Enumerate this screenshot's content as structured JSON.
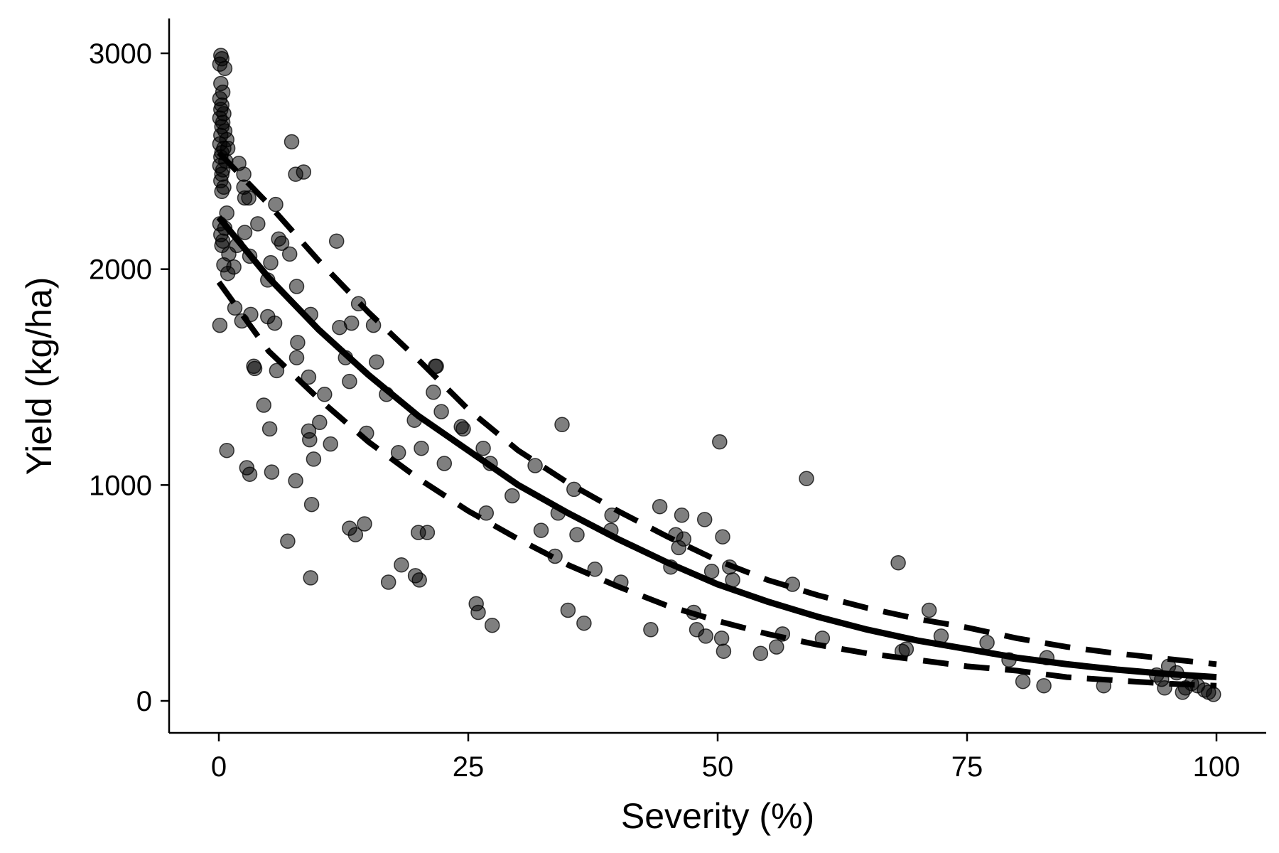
{
  "chart_data": {
    "type": "scatter",
    "xlabel": "Severity (%)",
    "ylabel": "Yield (kg/ha)",
    "xlim": [
      -5,
      105
    ],
    "ylim": [
      -150,
      3150
    ],
    "x_ticks": [
      0,
      25,
      50,
      75,
      100
    ],
    "y_ticks": [
      0,
      1000,
      2000,
      3000
    ],
    "grid": false,
    "legend": "none",
    "colors": {
      "points": "#000000",
      "fit": "#000000"
    },
    "series": [
      {
        "type": "scatter",
        "points": [
          [
            0.2,
            2990
          ],
          [
            0.3,
            2975
          ],
          [
            0.1,
            2950
          ],
          [
            0.6,
            2930
          ],
          [
            0.2,
            2860
          ],
          [
            0.4,
            2820
          ],
          [
            0.1,
            2790
          ],
          [
            0.3,
            2760
          ],
          [
            0.2,
            2740
          ],
          [
            0.5,
            2720
          ],
          [
            0.1,
            2700
          ],
          [
            0.4,
            2680
          ],
          [
            0.3,
            2660
          ],
          [
            0.6,
            2640
          ],
          [
            0.2,
            2620
          ],
          [
            0.8,
            2600
          ],
          [
            0.1,
            2580
          ],
          [
            0.5,
            2560
          ],
          [
            0.9,
            2560
          ],
          [
            0.3,
            2540
          ],
          [
            0.2,
            2520
          ],
          [
            0.7,
            2500
          ],
          [
            0.1,
            2480
          ],
          [
            0.4,
            2460
          ],
          [
            0.3,
            2440
          ],
          [
            0.2,
            2410
          ],
          [
            0.5,
            2380
          ],
          [
            0.3,
            2360
          ],
          [
            0.8,
            2260
          ],
          [
            0.1,
            2210
          ],
          [
            0.6,
            2190
          ],
          [
            0.2,
            2160
          ],
          [
            0.4,
            2130
          ],
          [
            0.3,
            2110
          ],
          [
            1.0,
            2070
          ],
          [
            0.5,
            2020
          ],
          [
            1.5,
            2010
          ],
          [
            0.9,
            1980
          ],
          [
            1.6,
            1820
          ],
          [
            0.1,
            1740
          ],
          [
            0.8,
            1160
          ],
          [
            1.8,
            2110
          ],
          [
            2.0,
            2490
          ],
          [
            2.5,
            2440
          ],
          [
            2.5,
            2380
          ],
          [
            2.6,
            2330
          ],
          [
            3.0,
            2330
          ],
          [
            2.6,
            2170
          ],
          [
            3.1,
            2060
          ],
          [
            2.3,
            1760
          ],
          [
            3.2,
            1790
          ],
          [
            3.5,
            1550
          ],
          [
            3.6,
            1540
          ],
          [
            2.8,
            1080
          ],
          [
            3.1,
            1050
          ],
          [
            3.9,
            2210
          ],
          [
            4.5,
            1370
          ],
          [
            4.9,
            1950
          ],
          [
            4.9,
            1780
          ],
          [
            5.1,
            1260
          ],
          [
            5.2,
            2030
          ],
          [
            5.6,
            1750
          ],
          [
            5.7,
            2300
          ],
          [
            5.8,
            1530
          ],
          [
            6.0,
            2140
          ],
          [
            6.3,
            2120
          ],
          [
            5.3,
            1060
          ],
          [
            6.9,
            740
          ],
          [
            7.1,
            2070
          ],
          [
            7.3,
            2590
          ],
          [
            7.7,
            2440
          ],
          [
            7.8,
            1920
          ],
          [
            7.9,
            1660
          ],
          [
            7.8,
            1590
          ],
          [
            7.7,
            1020
          ],
          [
            8.5,
            2450
          ],
          [
            9.0,
            1500
          ],
          [
            9.0,
            1250
          ],
          [
            9.1,
            1210
          ],
          [
            9.2,
            1790
          ],
          [
            9.3,
            910
          ],
          [
            9.2,
            570
          ],
          [
            9.5,
            1120
          ],
          [
            10.1,
            1290
          ],
          [
            10.6,
            1420
          ],
          [
            11.2,
            1190
          ],
          [
            11.8,
            2130
          ],
          [
            12.1,
            1730
          ],
          [
            12.7,
            1590
          ],
          [
            13.1,
            1480
          ],
          [
            13.3,
            1750
          ],
          [
            13.1,
            800
          ],
          [
            13.7,
            770
          ],
          [
            14.0,
            1840
          ],
          [
            14.6,
            820
          ],
          [
            14.8,
            1240
          ],
          [
            15.5,
            1740
          ],
          [
            15.8,
            1570
          ],
          [
            16.8,
            1420
          ],
          [
            17.0,
            550
          ],
          [
            18.0,
            1150
          ],
          [
            18.3,
            630
          ],
          [
            19.6,
            1300
          ],
          [
            19.7,
            580
          ],
          [
            20.0,
            780
          ],
          [
            20.1,
            560
          ],
          [
            20.3,
            1170
          ],
          [
            20.9,
            780
          ],
          [
            21.5,
            1430
          ],
          [
            21.7,
            1550
          ],
          [
            21.8,
            1550
          ],
          [
            22.3,
            1340
          ],
          [
            22.6,
            1100
          ],
          [
            24.3,
            1270
          ],
          [
            24.5,
            1260
          ],
          [
            25.8,
            450
          ],
          [
            26.0,
            410
          ],
          [
            26.5,
            1170
          ],
          [
            26.8,
            870
          ],
          [
            27.2,
            1100
          ],
          [
            27.4,
            350
          ],
          [
            29.4,
            950
          ],
          [
            31.7,
            1090
          ],
          [
            32.3,
            790
          ],
          [
            33.7,
            670
          ],
          [
            34.0,
            870
          ],
          [
            34.4,
            1280
          ],
          [
            35.0,
            420
          ],
          [
            35.6,
            980
          ],
          [
            35.9,
            770
          ],
          [
            36.6,
            360
          ],
          [
            37.7,
            610
          ],
          [
            39.3,
            790
          ],
          [
            39.4,
            860
          ],
          [
            40.3,
            550
          ],
          [
            43.3,
            330
          ],
          [
            44.2,
            900
          ],
          [
            45.3,
            620
          ],
          [
            45.8,
            770
          ],
          [
            46.1,
            710
          ],
          [
            46.4,
            860
          ],
          [
            46.6,
            750
          ],
          [
            47.6,
            410
          ],
          [
            47.9,
            330
          ],
          [
            48.7,
            840
          ],
          [
            48.8,
            300
          ],
          [
            49.4,
            600
          ],
          [
            50.2,
            1200
          ],
          [
            50.4,
            290
          ],
          [
            50.5,
            760
          ],
          [
            50.6,
            230
          ],
          [
            51.2,
            620
          ],
          [
            51.5,
            560
          ],
          [
            54.3,
            220
          ],
          [
            55.9,
            250
          ],
          [
            56.5,
            310
          ],
          [
            57.5,
            540
          ],
          [
            58.9,
            1030
          ],
          [
            60.5,
            290
          ],
          [
            68.1,
            640
          ],
          [
            68.5,
            230
          ],
          [
            68.9,
            240
          ],
          [
            71.2,
            420
          ],
          [
            72.4,
            300
          ],
          [
            77.0,
            270
          ],
          [
            79.2,
            190
          ],
          [
            80.6,
            90
          ],
          [
            82.7,
            70
          ],
          [
            83.0,
            200
          ],
          [
            88.7,
            70
          ],
          [
            94.0,
            120
          ],
          [
            94.5,
            100
          ],
          [
            94.8,
            60
          ],
          [
            95.2,
            160
          ],
          [
            96.0,
            130
          ],
          [
            96.6,
            40
          ],
          [
            96.9,
            60
          ],
          [
            97.5,
            80
          ],
          [
            98.1,
            70
          ],
          [
            98.8,
            50
          ],
          [
            99.2,
            40
          ],
          [
            99.7,
            30
          ]
        ]
      },
      {
        "type": "line",
        "style": "solid",
        "points": [
          [
            0,
            2240
          ],
          [
            5,
            1960
          ],
          [
            10,
            1720
          ],
          [
            15,
            1510
          ],
          [
            20,
            1320
          ],
          [
            25,
            1160
          ],
          [
            30,
            1000
          ],
          [
            35,
            870
          ],
          [
            40,
            750
          ],
          [
            45,
            640
          ],
          [
            50,
            540
          ],
          [
            55,
            460
          ],
          [
            60,
            390
          ],
          [
            65,
            330
          ],
          [
            70,
            280
          ],
          [
            75,
            240
          ],
          [
            80,
            200
          ],
          [
            85,
            170
          ],
          [
            90,
            145
          ],
          [
            95,
            125
          ],
          [
            100,
            110
          ]
        ]
      },
      {
        "type": "line",
        "style": "dashed",
        "points": [
          [
            0,
            2540
          ],
          [
            5,
            2300
          ],
          [
            10,
            2040
          ],
          [
            15,
            1800
          ],
          [
            20,
            1580
          ],
          [
            25,
            1350
          ],
          [
            30,
            1160
          ],
          [
            35,
            1010
          ],
          [
            40,
            880
          ],
          [
            45,
            760
          ],
          [
            50,
            650
          ],
          [
            55,
            560
          ],
          [
            60,
            490
          ],
          [
            65,
            430
          ],
          [
            70,
            380
          ],
          [
            75,
            340
          ],
          [
            80,
            290
          ],
          [
            85,
            250
          ],
          [
            90,
            220
          ],
          [
            95,
            195
          ],
          [
            100,
            170
          ]
        ]
      },
      {
        "type": "line",
        "style": "dashed",
        "points": [
          [
            0,
            1940
          ],
          [
            5,
            1620
          ],
          [
            10,
            1400
          ],
          [
            15,
            1200
          ],
          [
            20,
            1030
          ],
          [
            25,
            880
          ],
          [
            30,
            750
          ],
          [
            35,
            630
          ],
          [
            40,
            530
          ],
          [
            45,
            440
          ],
          [
            50,
            370
          ],
          [
            55,
            310
          ],
          [
            60,
            260
          ],
          [
            65,
            220
          ],
          [
            70,
            190
          ],
          [
            75,
            160
          ],
          [
            80,
            140
          ],
          [
            85,
            110
          ],
          [
            90,
            95
          ],
          [
            95,
            80
          ],
          [
            100,
            70
          ]
        ]
      }
    ]
  }
}
